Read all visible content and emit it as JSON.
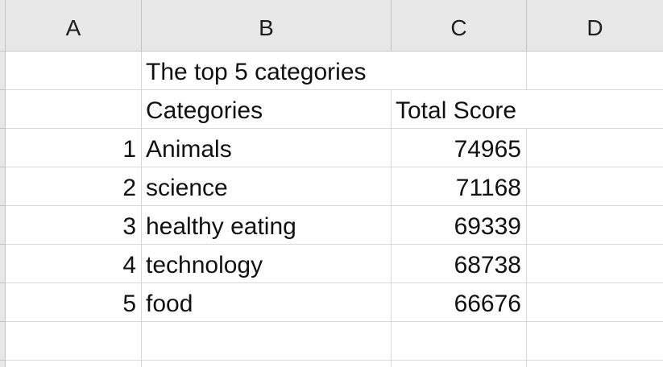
{
  "columns": [
    "A",
    "B",
    "C",
    "D"
  ],
  "title_cell": "The top 5 categories",
  "headers": {
    "category": "Categories",
    "score": "Total Score"
  },
  "rows": [
    {
      "rank": "1",
      "category": "Animals",
      "score": "74965"
    },
    {
      "rank": "2",
      "category": "science",
      "score": "71168"
    },
    {
      "rank": "3",
      "category": "healthy eating",
      "score": "69339"
    },
    {
      "rank": "4",
      "category": "technology",
      "score": "68738"
    },
    {
      "rank": "5",
      "category": "food",
      "score": "66676"
    }
  ]
}
